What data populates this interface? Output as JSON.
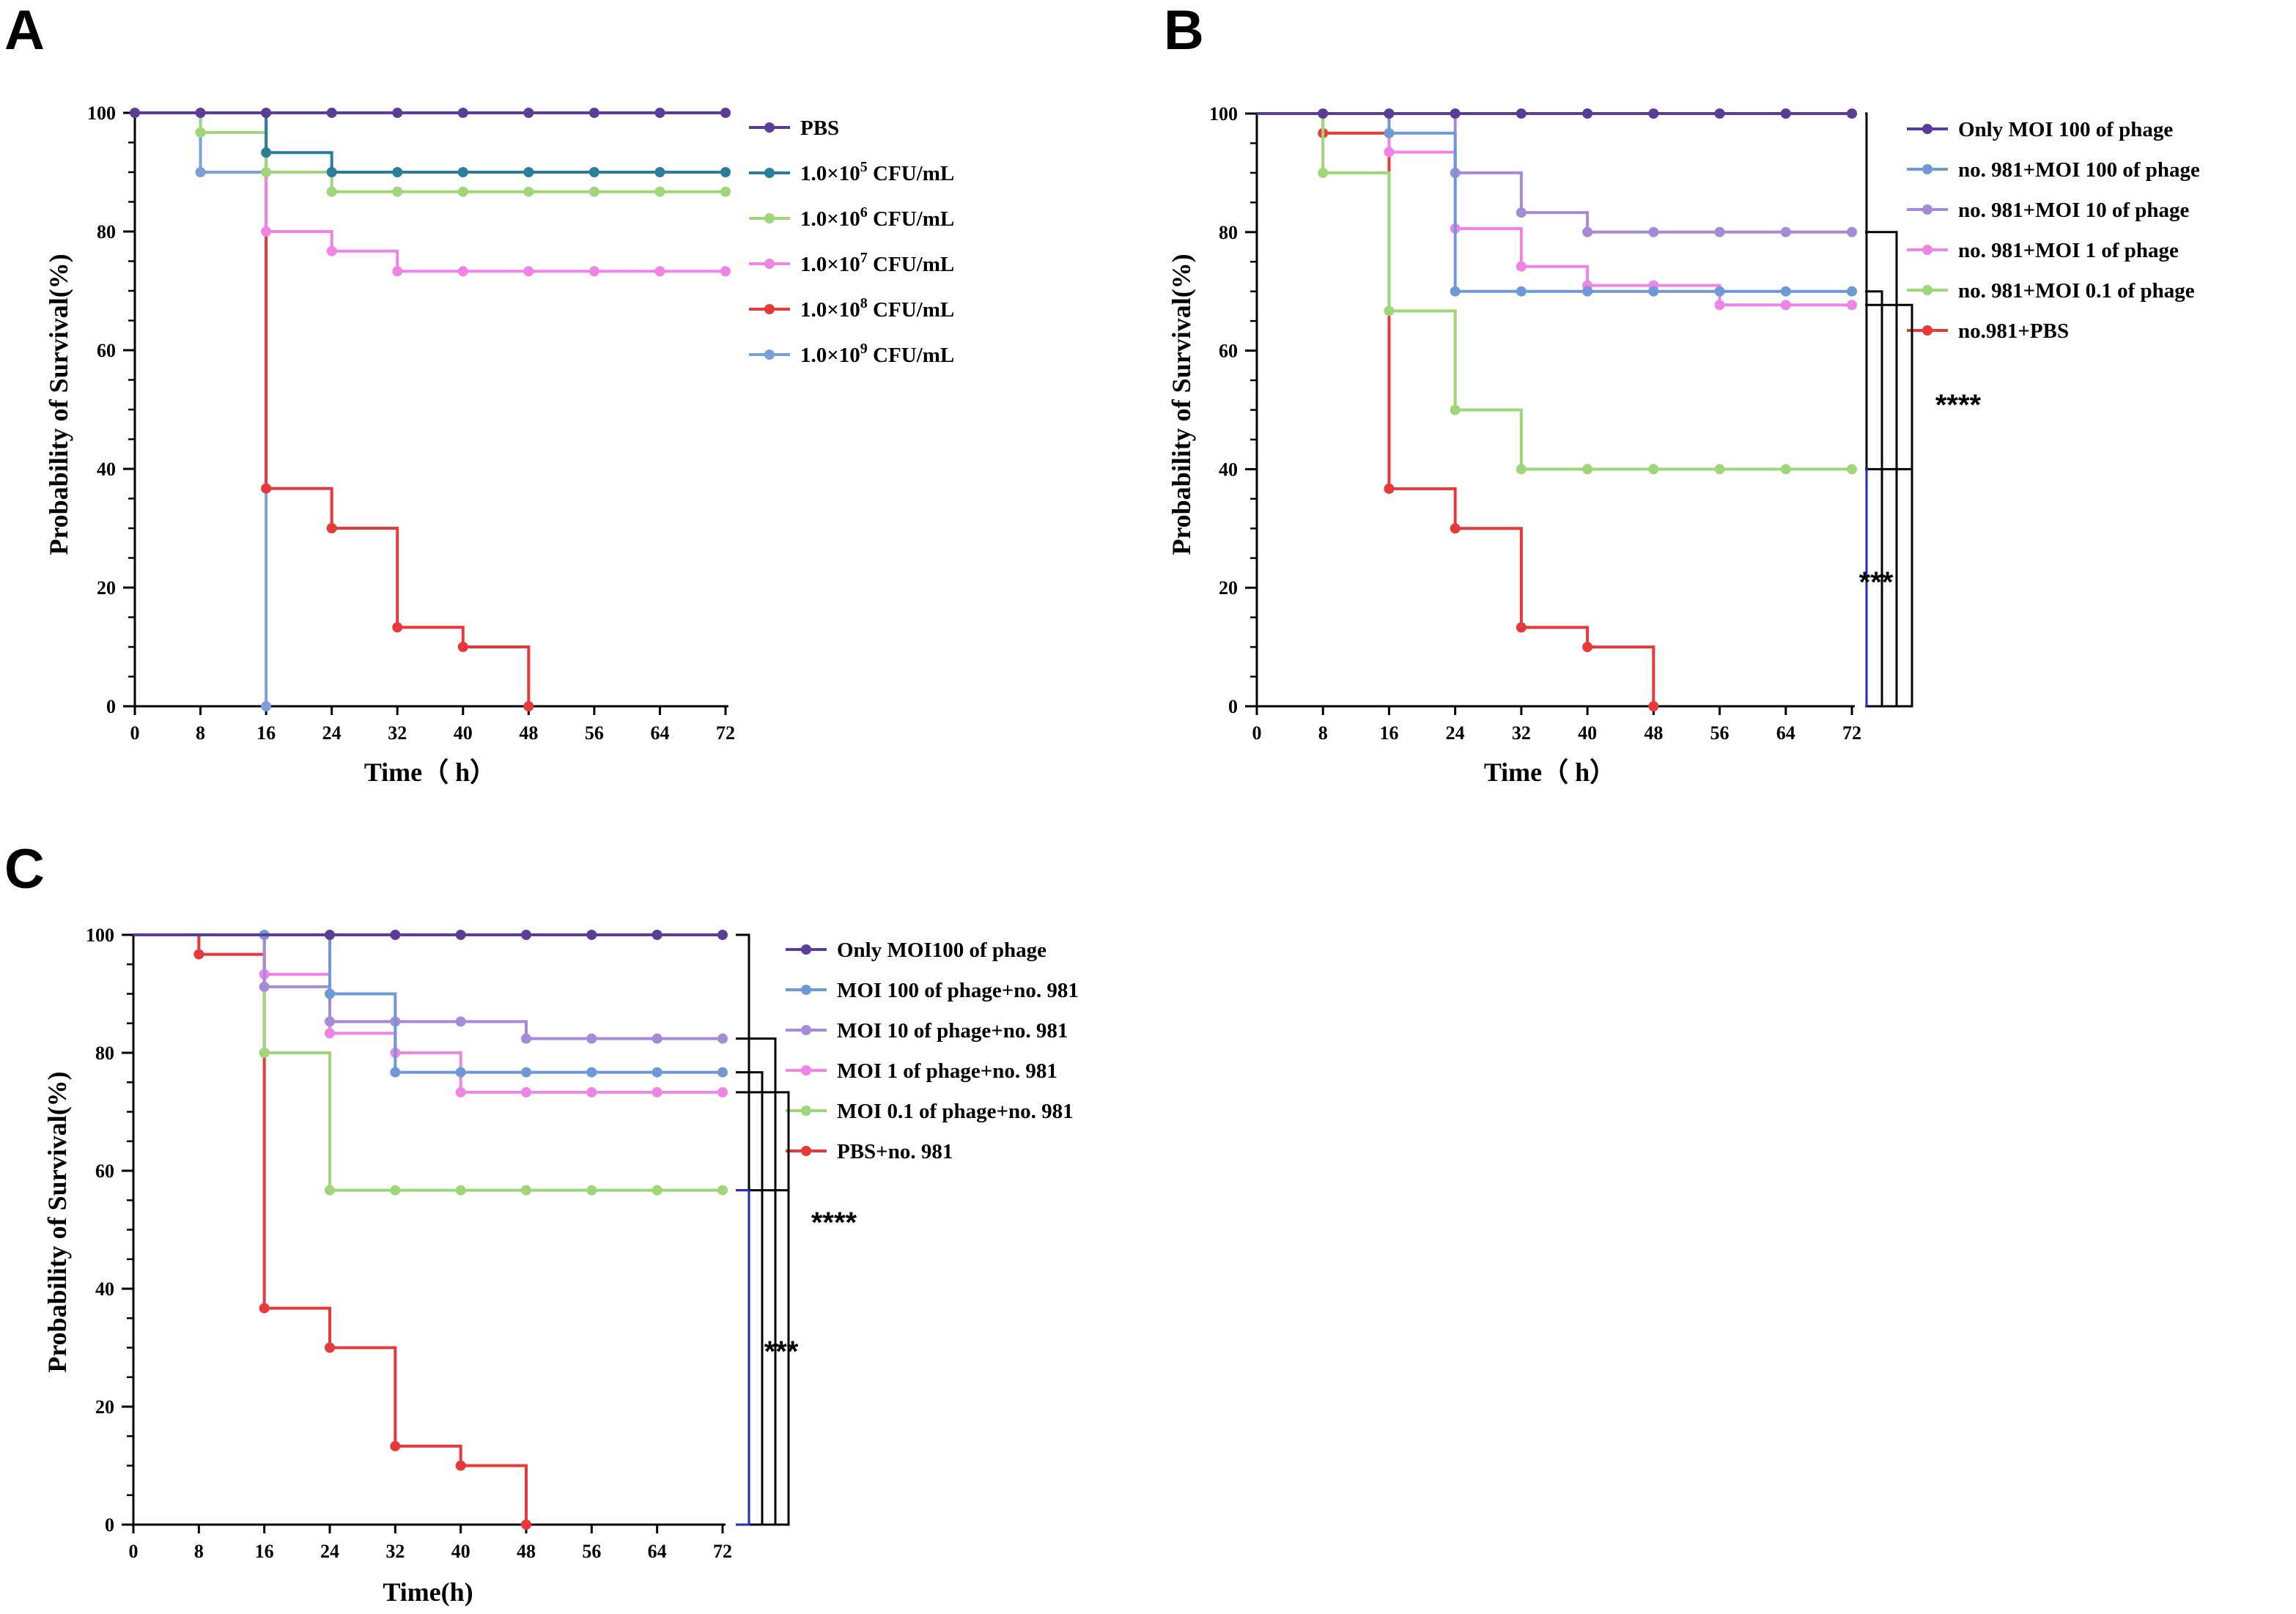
{
  "chart_data": [
    {
      "type": "line",
      "panel": "A",
      "xlabel": "Time（ h）",
      "ylabel": "Probability of Survival(%)",
      "xticks": [
        "0",
        "8",
        "16",
        "24",
        "32",
        "40",
        "48",
        "56",
        "64",
        "72"
      ],
      "yticks": [
        "0",
        "20",
        "40",
        "60",
        "80",
        "100"
      ],
      "xlim": [
        0,
        72
      ],
      "ylim": [
        0,
        100
      ],
      "legend_position": "right",
      "series": [
        {
          "name": "PBS",
          "color": "#5b3d97",
          "x": [
            0,
            8,
            16,
            24,
            32,
            40,
            48,
            56,
            64,
            72
          ],
          "y": [
            100,
            100,
            100,
            100,
            100,
            100,
            100,
            100,
            100,
            100
          ]
        },
        {
          "name": "1.0×10",
          "sup": "5",
          "unit": "CFU/mL",
          "color": "#2b7e9a",
          "x": [
            16,
            24,
            32,
            40,
            48,
            56,
            64,
            72
          ],
          "y": [
            93.3,
            90,
            90,
            90,
            90,
            90,
            90,
            90
          ]
        },
        {
          "name": "1.0×10",
          "sup": "6",
          "unit": "CFU/mL",
          "color": "#9fd67a",
          "x": [
            8,
            16,
            24,
            32,
            40,
            48,
            56,
            64,
            72
          ],
          "y": [
            96.7,
            90,
            86.7,
            86.7,
            86.7,
            86.7,
            86.7,
            86.7,
            86.7
          ]
        },
        {
          "name": "1.0×10",
          "sup": "7",
          "unit": "CFU/mL",
          "color": "#ee85e4",
          "x": [
            16,
            24,
            32,
            40,
            48,
            56,
            64,
            72
          ],
          "y": [
            80,
            76.7,
            73.3,
            73.3,
            73.3,
            73.3,
            73.3,
            73.3
          ]
        },
        {
          "name": "1.0×10",
          "sup": "8",
          "unit": "CFU/mL",
          "color": "#e8393a",
          "x": [
            16,
            24,
            32,
            40,
            48
          ],
          "y": [
            36.7,
            30,
            13.3,
            10,
            0
          ]
        },
        {
          "name": "1.0×10",
          "sup": "9",
          "unit": "CFU/mL",
          "color": "#7aa0da",
          "x": [
            8,
            16
          ],
          "y": [
            90,
            0
          ]
        }
      ],
      "significance": []
    },
    {
      "type": "line",
      "panel": "B",
      "xlabel": "Time（ h）",
      "ylabel": "Probability of Survival(%)",
      "xticks": [
        "0",
        "8",
        "16",
        "24",
        "32",
        "40",
        "48",
        "56",
        "64",
        "72"
      ],
      "yticks": [
        "0",
        "20",
        "40",
        "60",
        "80",
        "100"
      ],
      "xlim": [
        0,
        72
      ],
      "ylim": [
        0,
        100
      ],
      "legend_position": "right",
      "series": [
        {
          "name": "Only MOI 100 of phage",
          "color": "#5b3d97",
          "x": [
            8,
            16,
            24,
            32,
            40,
            48,
            56,
            64,
            72
          ],
          "y": [
            100,
            100,
            100,
            100,
            100,
            100,
            100,
            100,
            100
          ]
        },
        {
          "name": "no. 981+MOI 100 of phage",
          "color": "#6f98d6",
          "x": [
            16,
            24,
            32,
            40,
            48,
            56,
            64,
            72
          ],
          "y": [
            96.7,
            70,
            70,
            70,
            70,
            70,
            70,
            70
          ]
        },
        {
          "name": "no. 981+MOI 10 of phage",
          "color": "#a58bd6",
          "x": [
            24,
            32,
            40,
            48,
            56,
            64,
            72
          ],
          "y": [
            90,
            83.3,
            80,
            80,
            80,
            80,
            80
          ]
        },
        {
          "name": "no. 981+MOI 1 of phage",
          "color": "#ee85e4",
          "x": [
            16,
            24,
            32,
            40,
            48,
            56,
            64,
            72
          ],
          "y": [
            93.5,
            80.6,
            74.2,
            71,
            71,
            67.7,
            67.7,
            67.7
          ]
        },
        {
          "name": "no. 981+MOI 0.1 of phage",
          "color": "#9fd67a",
          "x": [
            8,
            16,
            24,
            32,
            40,
            48,
            56,
            64,
            72
          ],
          "y": [
            90,
            66.7,
            50,
            40,
            40,
            40,
            40,
            40,
            40
          ]
        },
        {
          "name": "no.981+PBS",
          "color": "#e8393a",
          "x": [
            8,
            16,
            24,
            32,
            40,
            48
          ],
          "y": [
            96.7,
            36.7,
            30,
            13.3,
            10,
            0
          ]
        }
      ],
      "significance": [
        {
          "label": "****",
          "color": "#000000"
        },
        {
          "label": "***",
          "color": "#2b2fd0"
        }
      ]
    },
    {
      "type": "line",
      "panel": "C",
      "xlabel": "Time(h)",
      "ylabel": "Probability of Survival(%)",
      "xticks": [
        "0",
        "8",
        "16",
        "24",
        "32",
        "40",
        "48",
        "56",
        "64",
        "72"
      ],
      "yticks": [
        "0",
        "20",
        "40",
        "60",
        "80",
        "100"
      ],
      "xlim": [
        0,
        72
      ],
      "ylim": [
        0,
        100
      ],
      "legend_position": "right",
      "series": [
        {
          "name": "Only MOI100 of phage",
          "color": "#5b3d97",
          "x": [
            24,
            32,
            40,
            48,
            56,
            64,
            72
          ],
          "y": [
            100,
            100,
            100,
            100,
            100,
            100,
            100
          ]
        },
        {
          "name": "MOI 100 of phage+no. 981",
          "color": "#6f98d6",
          "x": [
            16,
            24,
            32,
            40,
            48,
            56,
            64,
            72
          ],
          "y": [
            100,
            90,
            76.7,
            76.7,
            76.7,
            76.7,
            76.7,
            76.7
          ]
        },
        {
          "name": "MOI 10 of phage+no. 981",
          "color": "#a58bd6",
          "x": [
            16,
            24,
            32,
            40,
            48,
            56,
            64,
            72
          ],
          "y": [
            91.2,
            85.3,
            85.3,
            85.3,
            82.4,
            82.4,
            82.4,
            82.4
          ]
        },
        {
          "name": "MOI 1 of phage+no. 981",
          "color": "#ee85e4",
          "x": [
            16,
            24,
            32,
            40,
            48,
            56,
            64,
            72
          ],
          "y": [
            93.3,
            83.3,
            80,
            73.3,
            73.3,
            73.3,
            73.3,
            73.3
          ]
        },
        {
          "name": "MOI 0.1 of phage+no. 981",
          "color": "#9fd67a",
          "x": [
            16,
            24,
            32,
            40,
            48,
            56,
            64,
            72
          ],
          "y": [
            80,
            56.7,
            56.7,
            56.7,
            56.7,
            56.7,
            56.7,
            56.7
          ]
        },
        {
          "name": "PBS+no. 981",
          "color": "#e8393a",
          "x": [
            8,
            16,
            24,
            32,
            40,
            48
          ],
          "y": [
            96.7,
            36.7,
            30,
            13.3,
            10,
            0
          ]
        }
      ],
      "significance": [
        {
          "label": "****",
          "color": "#000000"
        },
        {
          "label": "***",
          "color": "#2b2fd0"
        }
      ]
    }
  ]
}
